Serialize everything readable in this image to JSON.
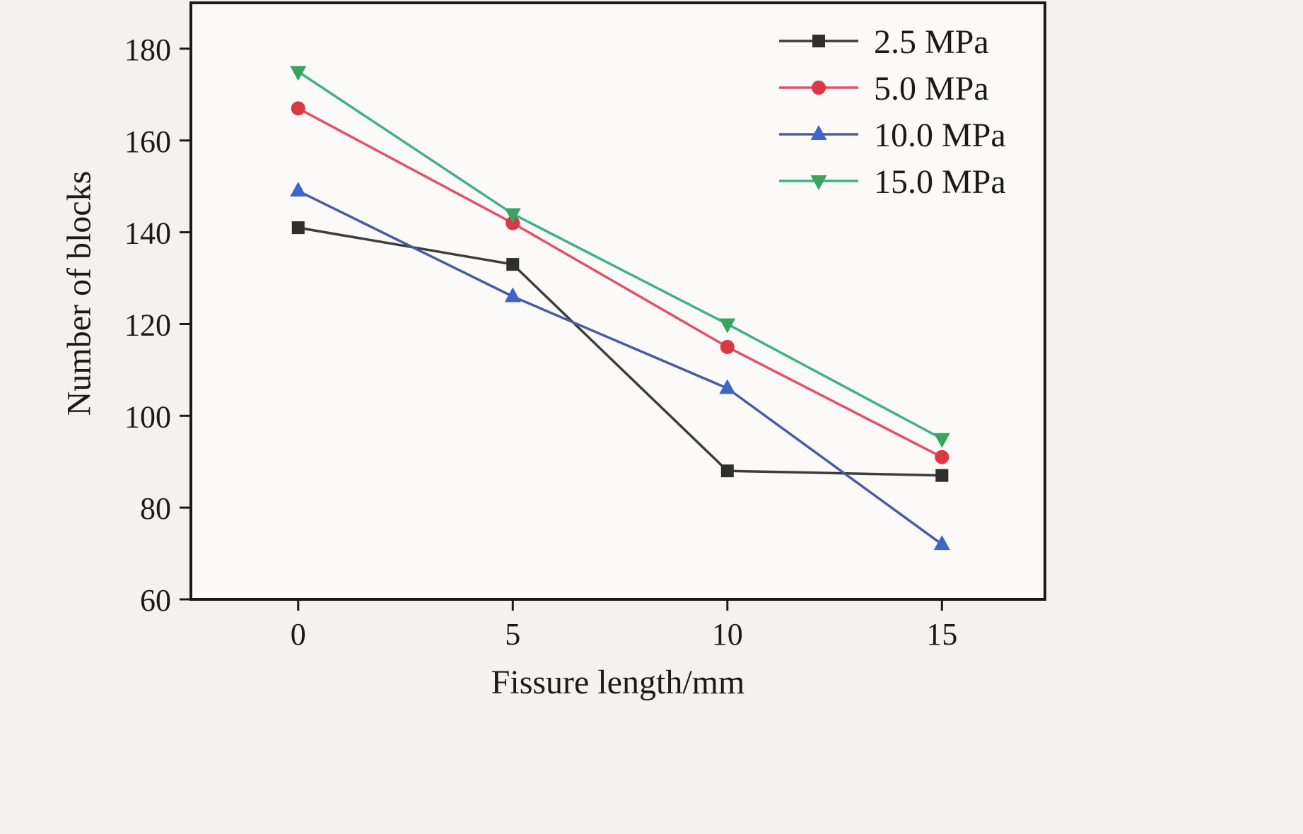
{
  "chart_data": {
    "type": "line",
    "title": "",
    "xlabel": "Fissure length/mm",
    "ylabel": "Number of blocks",
    "x": [
      0,
      5,
      10,
      15
    ],
    "xticks": [
      0,
      5,
      10,
      15
    ],
    "yticks": [
      60,
      80,
      100,
      120,
      140,
      160,
      180
    ],
    "xlim": [
      -2.5,
      17.4
    ],
    "ylim": [
      60,
      190
    ],
    "grid": false,
    "legend_position": "top-right",
    "series": [
      {
        "name": "2.5 MPa",
        "marker": "square",
        "line_color": "#3d3d3d",
        "marker_color": "#2e2e2e",
        "values": [
          141,
          133,
          88,
          87
        ]
      },
      {
        "name": "5.0 MPa",
        "marker": "circle",
        "line_color": "#e4506a",
        "marker_color": "#da3844",
        "values": [
          167,
          142,
          115,
          91
        ]
      },
      {
        "name": "10.0 MPa",
        "marker": "triangle-up",
        "line_color": "#4a5aa5",
        "marker_color": "#3c66c8",
        "values": [
          149,
          126,
          106,
          72
        ]
      },
      {
        "name": "15.0 MPa",
        "marker": "triangle-down",
        "line_color": "#3fb08f",
        "marker_color": "#38a45f",
        "values": [
          175,
          144,
          120,
          95
        ]
      }
    ]
  }
}
